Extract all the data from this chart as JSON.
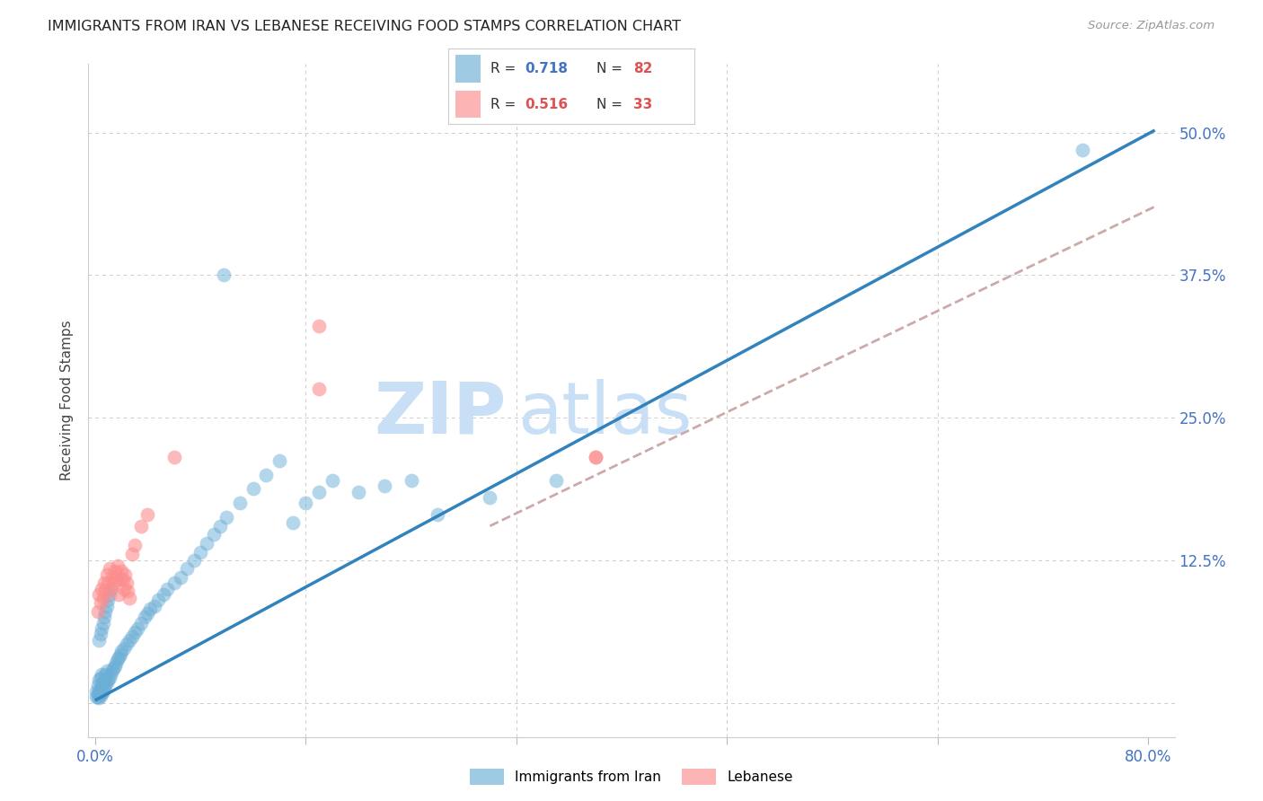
{
  "title": "IMMIGRANTS FROM IRAN VS LEBANESE RECEIVING FOOD STAMPS CORRELATION CHART",
  "source": "Source: ZipAtlas.com",
  "ylabel": "Receiving Food Stamps",
  "iran_color": "#6baed6",
  "leb_color": "#fc8d8d",
  "iran_line_color": "#3182bd",
  "leb_line_color": "#ccaaaa",
  "leb_line_style": "--",
  "watermark_zip_color": "#c8dff5",
  "watermark_atlas_color": "#c8dff5",
  "title_color": "#222222",
  "axis_color": "#4472c4",
  "ylabel_color": "#444444",
  "source_color": "#999999",
  "grid_color": "#cccccc",
  "legend_r_iran_color": "#4472c4",
  "legend_n_iran_color": "#e05050",
  "legend_r_leb_color": "#e05050",
  "legend_n_leb_color": "#e05050",
  "legend_border_color": "#cccccc",
  "ytick_positions": [
    0.0,
    0.125,
    0.25,
    0.375,
    0.5
  ],
  "ytick_labels": [
    "",
    "12.5%",
    "25.0%",
    "37.5%",
    "50.0%"
  ],
  "xtick_positions": [
    0.0,
    0.16,
    0.32,
    0.48,
    0.64,
    0.8
  ],
  "xtick_labels": [
    "0.0%",
    "",
    "",
    "",
    "",
    "80.0%"
  ],
  "xlim": [
    -0.005,
    0.82
  ],
  "ylim": [
    -0.03,
    0.56
  ],
  "iran_line_x": [
    0.0,
    0.805
  ],
  "iran_line_y": [
    0.002,
    0.502
  ],
  "leb_line_x": [
    0.3,
    0.805
  ],
  "leb_line_y": [
    0.155,
    0.435
  ],
  "iran_scatter_x": [
    0.001,
    0.001,
    0.002,
    0.002,
    0.002,
    0.003,
    0.003,
    0.003,
    0.004,
    0.004,
    0.004,
    0.005,
    0.005,
    0.005,
    0.006,
    0.006,
    0.007,
    0.007,
    0.008,
    0.008,
    0.009,
    0.009,
    0.01,
    0.011,
    0.012,
    0.013,
    0.014,
    0.015,
    0.016,
    0.017,
    0.018,
    0.019,
    0.02,
    0.022,
    0.024,
    0.026,
    0.028,
    0.03,
    0.032,
    0.035,
    0.038,
    0.04,
    0.042,
    0.045,
    0.048,
    0.052,
    0.055,
    0.06,
    0.065,
    0.07,
    0.075,
    0.08,
    0.085,
    0.09,
    0.095,
    0.1,
    0.11,
    0.12,
    0.13,
    0.14,
    0.15,
    0.16,
    0.17,
    0.18,
    0.2,
    0.22,
    0.24,
    0.003,
    0.004,
    0.005,
    0.006,
    0.007,
    0.008,
    0.009,
    0.01,
    0.011,
    0.012,
    0.26,
    0.3,
    0.35,
    0.098,
    0.75
  ],
  "iran_scatter_y": [
    0.005,
    0.01,
    0.005,
    0.008,
    0.015,
    0.004,
    0.01,
    0.02,
    0.006,
    0.012,
    0.022,
    0.008,
    0.015,
    0.025,
    0.01,
    0.018,
    0.012,
    0.02,
    0.015,
    0.025,
    0.018,
    0.028,
    0.02,
    0.022,
    0.025,
    0.028,
    0.03,
    0.032,
    0.035,
    0.038,
    0.04,
    0.042,
    0.045,
    0.048,
    0.052,
    0.055,
    0.058,
    0.062,
    0.065,
    0.07,
    0.075,
    0.078,
    0.082,
    0.085,
    0.09,
    0.095,
    0.1,
    0.105,
    0.11,
    0.118,
    0.125,
    0.132,
    0.14,
    0.148,
    0.155,
    0.163,
    0.175,
    0.188,
    0.2,
    0.212,
    0.158,
    0.175,
    0.185,
    0.195,
    0.185,
    0.19,
    0.195,
    0.055,
    0.06,
    0.065,
    0.07,
    0.075,
    0.08,
    0.085,
    0.09,
    0.095,
    0.1,
    0.165,
    0.18,
    0.195,
    0.375,
    0.485
  ],
  "leb_scatter_x": [
    0.002,
    0.003,
    0.004,
    0.005,
    0.006,
    0.007,
    0.008,
    0.009,
    0.01,
    0.011,
    0.012,
    0.013,
    0.014,
    0.015,
    0.016,
    0.017,
    0.018,
    0.019,
    0.02,
    0.021,
    0.022,
    0.023,
    0.024,
    0.025,
    0.026,
    0.028,
    0.03,
    0.035,
    0.04,
    0.06,
    0.17,
    0.38,
    0.38
  ],
  "leb_scatter_y": [
    0.08,
    0.095,
    0.088,
    0.1,
    0.092,
    0.105,
    0.098,
    0.112,
    0.105,
    0.118,
    0.1,
    0.11,
    0.105,
    0.115,
    0.108,
    0.12,
    0.095,
    0.108,
    0.115,
    0.108,
    0.1,
    0.112,
    0.105,
    0.098,
    0.092,
    0.13,
    0.138,
    0.155,
    0.165,
    0.215,
    0.275,
    0.215,
    0.215
  ]
}
